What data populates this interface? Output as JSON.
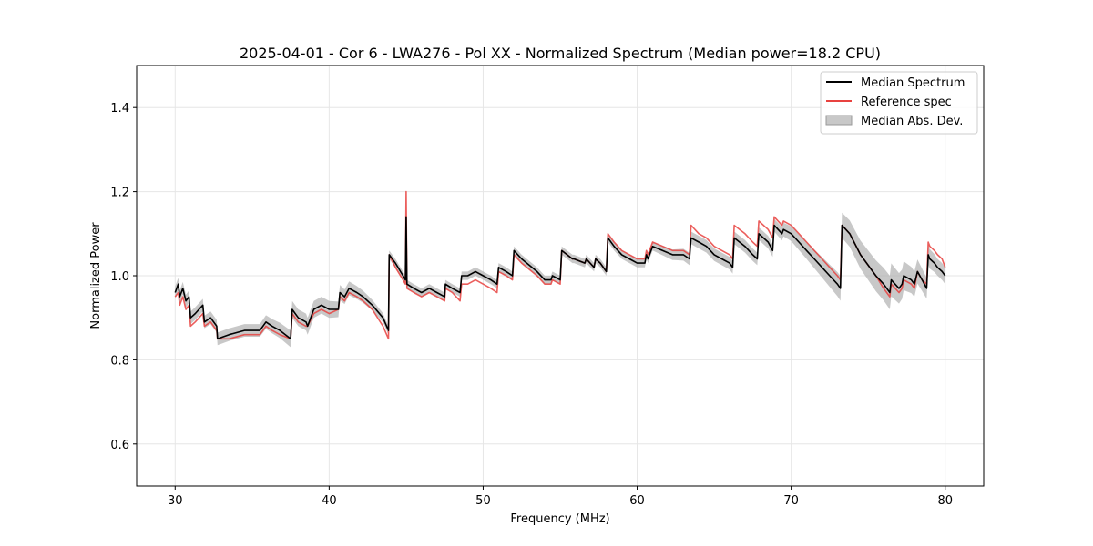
{
  "chart_data": {
    "type": "line",
    "title": "2025-04-01 - Cor 6 - LWA276 - Pol XX - Normalized Spectrum (Median power=18.2 CPU)",
    "xlabel": "Frequency (MHz)",
    "ylabel": "Normalized Power",
    "xlim": [
      27.5,
      82.5
    ],
    "ylim": [
      0.5,
      1.5
    ],
    "xticks": [
      30,
      40,
      50,
      60,
      70,
      80
    ],
    "yticks": [
      0.6,
      0.8,
      1.0,
      1.2,
      1.4
    ],
    "xtick_labels": [
      "30",
      "40",
      "50",
      "60",
      "70",
      "80"
    ],
    "ytick_labels": [
      "0.6",
      "0.8",
      "1.0",
      "1.2",
      "1.4"
    ],
    "grid": true,
    "legend_position": "top-right",
    "series": [
      {
        "name": "Median Spectrum",
        "color": "#000000",
        "x": [
          30.0,
          30.2,
          30.3,
          30.5,
          30.7,
          30.9,
          31.0,
          31.3,
          31.8,
          31.9,
          32.3,
          32.7,
          32.75,
          33.5,
          34.5,
          35.5,
          35.9,
          36.3,
          36.8,
          37.5,
          37.6,
          38.0,
          38.5,
          38.6,
          39.0,
          39.5,
          40.0,
          40.6,
          40.7,
          41.0,
          41.3,
          41.8,
          42.2,
          42.8,
          43.5,
          43.85,
          43.9,
          44.3,
          44.8,
          44.95,
          45.0,
          45.05,
          45.5,
          46.0,
          46.5,
          47.0,
          47.5,
          47.55,
          48.0,
          48.5,
          48.6,
          49.0,
          49.5,
          50.0,
          50.5,
          50.9,
          51.0,
          51.5,
          51.9,
          52.0,
          52.5,
          53.5,
          54.0,
          54.4,
          54.5,
          55.0,
          55.1,
          55.8,
          55.9,
          56.6,
          56.7,
          57.2,
          57.3,
          57.6,
          58.0,
          58.1,
          58.5,
          59.0,
          59.5,
          60.0,
          60.5,
          60.6,
          60.7,
          61.0,
          62.3,
          62.4,
          63.0,
          63.4,
          63.5,
          64.0,
          64.5,
          65.0,
          65.5,
          66.0,
          66.2,
          66.3,
          67.0,
          67.5,
          67.8,
          67.9,
          68.5,
          68.8,
          68.9,
          69.4,
          69.5,
          70.0,
          70.5,
          71.0,
          71.5,
          72.0,
          72.5,
          73.0,
          73.2,
          73.3,
          73.8,
          74.5,
          75.5,
          76.0,
          76.4,
          76.5,
          77.0,
          77.2,
          77.3,
          77.8,
          78.0,
          78.2,
          78.5,
          78.8,
          78.9,
          79.0,
          79.3,
          79.5,
          79.8,
          80.0
        ],
        "values": [
          0.96,
          0.98,
          0.95,
          0.97,
          0.94,
          0.95,
          0.9,
          0.91,
          0.93,
          0.89,
          0.9,
          0.88,
          0.85,
          0.86,
          0.87,
          0.87,
          0.89,
          0.88,
          0.87,
          0.85,
          0.92,
          0.9,
          0.89,
          0.88,
          0.92,
          0.93,
          0.92,
          0.92,
          0.96,
          0.95,
          0.97,
          0.96,
          0.95,
          0.93,
          0.9,
          0.87,
          1.05,
          1.03,
          1.0,
          0.99,
          1.14,
          0.98,
          0.97,
          0.96,
          0.97,
          0.96,
          0.95,
          0.98,
          0.97,
          0.96,
          1.0,
          1.0,
          1.01,
          1.0,
          0.99,
          0.98,
          1.02,
          1.01,
          1.0,
          1.06,
          1.04,
          1.01,
          0.99,
          0.99,
          1.0,
          0.99,
          1.06,
          1.04,
          1.04,
          1.03,
          1.04,
          1.02,
          1.04,
          1.03,
          1.01,
          1.09,
          1.07,
          1.05,
          1.04,
          1.03,
          1.03,
          1.05,
          1.04,
          1.07,
          1.05,
          1.05,
          1.05,
          1.04,
          1.09,
          1.08,
          1.07,
          1.05,
          1.04,
          1.03,
          1.02,
          1.09,
          1.07,
          1.05,
          1.04,
          1.1,
          1.08,
          1.06,
          1.12,
          1.1,
          1.11,
          1.1,
          1.08,
          1.06,
          1.04,
          1.02,
          1.0,
          0.98,
          0.97,
          1.12,
          1.1,
          1.05,
          1.0,
          0.98,
          0.96,
          0.99,
          0.97,
          0.98,
          1.0,
          0.99,
          0.98,
          1.01,
          0.99,
          0.97,
          1.05,
          1.04,
          1.03,
          1.02,
          1.01,
          1.0
        ]
      },
      {
        "name": "Reference spec",
        "color": "#e8423f",
        "x": [
          30.0,
          30.2,
          30.3,
          30.5,
          30.7,
          30.9,
          31.0,
          31.3,
          31.8,
          31.9,
          32.3,
          32.7,
          32.75,
          33.5,
          34.5,
          35.5,
          35.9,
          36.3,
          36.8,
          37.5,
          37.6,
          38.0,
          38.5,
          38.6,
          39.0,
          39.5,
          40.0,
          40.6,
          40.7,
          41.0,
          41.3,
          41.8,
          42.2,
          42.8,
          43.5,
          43.85,
          43.9,
          44.3,
          44.8,
          44.95,
          45.0,
          45.05,
          45.5,
          46.0,
          46.5,
          47.0,
          47.5,
          47.55,
          48.0,
          48.5,
          48.6,
          49.0,
          49.5,
          50.0,
          50.5,
          50.9,
          51.0,
          51.5,
          51.9,
          52.0,
          52.5,
          53.5,
          54.0,
          54.4,
          54.5,
          55.0,
          55.1,
          55.8,
          55.9,
          56.6,
          56.7,
          57.2,
          57.3,
          57.6,
          58.0,
          58.1,
          58.5,
          59.0,
          59.5,
          60.0,
          60.5,
          60.6,
          60.7,
          61.0,
          62.3,
          62.4,
          63.0,
          63.4,
          63.5,
          64.0,
          64.5,
          65.0,
          65.5,
          66.0,
          66.2,
          66.3,
          67.0,
          67.5,
          67.8,
          67.9,
          68.5,
          68.8,
          68.9,
          69.4,
          69.5,
          70.0,
          70.5,
          71.0,
          71.5,
          72.0,
          72.5,
          73.0,
          73.2,
          73.3,
          73.8,
          74.5,
          75.5,
          76.0,
          76.4,
          76.5,
          77.0,
          77.2,
          77.3,
          77.8,
          78.0,
          78.2,
          78.5,
          78.8,
          78.9,
          79.0,
          79.3,
          79.5,
          79.8,
          80.0
        ],
        "values": [
          0.95,
          0.96,
          0.93,
          0.95,
          0.92,
          0.93,
          0.88,
          0.89,
          0.91,
          0.88,
          0.89,
          0.87,
          0.85,
          0.85,
          0.86,
          0.86,
          0.88,
          0.87,
          0.86,
          0.85,
          0.91,
          0.89,
          0.88,
          0.88,
          0.91,
          0.92,
          0.91,
          0.92,
          0.95,
          0.94,
          0.96,
          0.95,
          0.94,
          0.92,
          0.88,
          0.85,
          1.05,
          1.02,
          0.99,
          0.98,
          1.2,
          0.97,
          0.96,
          0.95,
          0.96,
          0.95,
          0.94,
          0.97,
          0.96,
          0.94,
          0.98,
          0.98,
          0.99,
          0.98,
          0.97,
          0.96,
          1.01,
          1.0,
          0.99,
          1.05,
          1.03,
          1.0,
          0.98,
          0.98,
          0.99,
          0.98,
          1.06,
          1.04,
          1.04,
          1.03,
          1.04,
          1.02,
          1.04,
          1.03,
          1.01,
          1.1,
          1.08,
          1.06,
          1.05,
          1.04,
          1.04,
          1.06,
          1.05,
          1.08,
          1.06,
          1.06,
          1.06,
          1.05,
          1.12,
          1.1,
          1.09,
          1.07,
          1.06,
          1.05,
          1.04,
          1.12,
          1.1,
          1.08,
          1.07,
          1.13,
          1.11,
          1.09,
          1.14,
          1.12,
          1.13,
          1.12,
          1.1,
          1.08,
          1.06,
          1.04,
          1.02,
          1.0,
          0.99,
          1.12,
          1.1,
          1.05,
          1.0,
          0.97,
          0.95,
          0.98,
          0.96,
          0.97,
          0.99,
          0.98,
          0.97,
          1.01,
          0.99,
          0.98,
          1.08,
          1.07,
          1.06,
          1.05,
          1.04,
          1.02
        ]
      }
    ],
    "band": {
      "name": "Median Abs. Dev.",
      "color": "#b0b0b0",
      "x": [
        30.0,
        32.7,
        35.5,
        37.5,
        40.0,
        43.85,
        45.05,
        48.0,
        52.0,
        55.0,
        58.1,
        61.0,
        63.5,
        66.3,
        69.0,
        71.0,
        73.3,
        75.0,
        76.4,
        78.0,
        79.5,
        80.0
      ],
      "half_width": [
        0.015,
        0.015,
        0.015,
        0.02,
        0.02,
        0.01,
        0.01,
        0.01,
        0.01,
        0.01,
        0.01,
        0.01,
        0.015,
        0.015,
        0.015,
        0.02,
        0.03,
        0.035,
        0.04,
        0.03,
        0.02,
        0.02
      ]
    }
  }
}
